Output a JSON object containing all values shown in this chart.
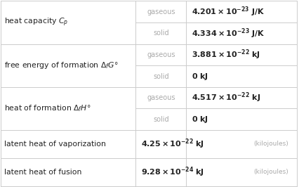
{
  "background_color": "#ffffff",
  "line_color": "#cccccc",
  "label_color": "#222222",
  "sublabel_color": "#aaaaaa",
  "value_bold_color": "#222222",
  "value_normal_color": "#888888",
  "figsize": [
    4.26,
    2.66
  ],
  "dpi": 100,
  "col1": 0.455,
  "col2": 0.625,
  "rows": [
    {
      "label": "heat capacity $\\mathit{C}_p$",
      "sub1": "gaseous",
      "val1_pre": "4.201×10",
      "val1_exp": "−23",
      "val1_unit": " J/K",
      "sub2": "solid",
      "val2_pre": "4.334×10",
      "val2_exp": "−23",
      "val2_unit": " J/K",
      "val2_bold": false
    },
    {
      "label": "free energy of formation $\\Delta_f G°$",
      "sub1": "gaseous",
      "val1_pre": "3.881×10",
      "val1_exp": "−22",
      "val1_unit": " kJ",
      "sub2": "solid",
      "val2_pre": "0 kJ",
      "val2_exp": "",
      "val2_unit": "",
      "val2_bold": true
    },
    {
      "label": "heat of formation $\\Delta_f H°$",
      "sub1": "gaseous",
      "val1_pre": "4.517×10",
      "val1_exp": "−22",
      "val1_unit": " kJ",
      "sub2": "solid",
      "val2_pre": "0 kJ",
      "val2_exp": "",
      "val2_unit": "",
      "val2_bold": true
    },
    {
      "label": "latent heat of vaporization",
      "sub1": null,
      "val1_pre": "4.25×10",
      "val1_exp": "−22",
      "val1_unit": " kJ",
      "val1_suffix": " (kilojoules)",
      "sub2": null
    },
    {
      "label": "latent heat of fusion",
      "sub1": null,
      "val1_pre": "9.28×10",
      "val1_exp": "−24",
      "val1_unit": " kJ",
      "val1_suffix": " (kilojoules)",
      "sub2": null
    }
  ],
  "row_heights": [
    2.0,
    2.0,
    2.0,
    1.3,
    1.3
  ]
}
